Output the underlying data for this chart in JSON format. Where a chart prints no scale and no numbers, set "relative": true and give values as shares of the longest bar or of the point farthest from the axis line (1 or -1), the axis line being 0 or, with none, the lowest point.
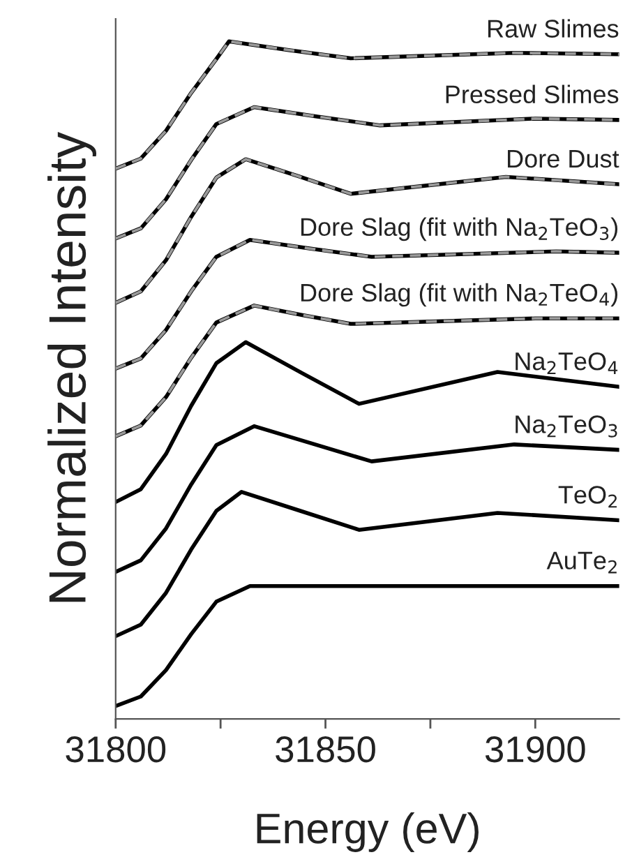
{
  "chart_data": {
    "type": "line",
    "relative": true,
    "xlabel": "Energy (eV)",
    "ylabel": "Normalized Intensity",
    "xlim": [
      31800,
      31920
    ],
    "xticks": [
      31800,
      31850,
      31900,
      {
        "value": 31825,
        "label": null
      },
      {
        "value": 31875,
        "label": null
      }
    ],
    "tick_labels": "x",
    "grid": false,
    "legend": false,
    "line_style": "solid",
    "marker": "none",
    "series": [
      {
        "name": "Raw Slimes",
        "color": "#000000",
        "x": [
          31800,
          31806,
          31812,
          31818,
          31824,
          31827,
          31841.5,
          31856,
          31895,
          31920
        ],
        "values": [
          0.812,
          0.827,
          0.868,
          0.924,
          0.974,
          1.0,
          0.987,
          0.975,
          0.983,
          0.981
        ]
      },
      {
        "name": "Pressed Slimes",
        "color": "#000000",
        "x": [
          31800,
          31806,
          31812,
          31818,
          31824,
          31833,
          31848,
          31863,
          31900,
          31920
        ],
        "values": [
          0.709,
          0.724,
          0.767,
          0.825,
          0.878,
          0.903,
          0.889,
          0.876,
          0.886,
          0.884
        ]
      },
      {
        "name": "Dore Dust",
        "color": "#000000",
        "x": [
          31800,
          31806,
          31812,
          31818,
          31824,
          31831,
          31843.5,
          31856,
          31893,
          31920
        ],
        "values": [
          0.614,
          0.631,
          0.677,
          0.741,
          0.799,
          0.826,
          0.801,
          0.775,
          0.8,
          0.789
        ]
      },
      {
        "name": "Dore Slag (fit with Na$_{2}$TeO$_{3}$)",
        "color": "#000000",
        "x": [
          31800,
          31806,
          31812,
          31818,
          31824,
          31832,
          31846.5,
          31861,
          31905,
          31920
        ],
        "values": [
          0.517,
          0.532,
          0.574,
          0.631,
          0.682,
          0.707,
          0.694,
          0.682,
          0.69,
          0.688
        ]
      },
      {
        "name": "Dore Slag (fit with Na$_{2}$TeO$_{4}$)",
        "color": "#000000",
        "x": [
          31800,
          31806,
          31812,
          31818,
          31824,
          31833,
          31844.5,
          31856,
          31900,
          31920
        ],
        "values": [
          0.417,
          0.433,
          0.475,
          0.533,
          0.585,
          0.61,
          0.596,
          0.583,
          0.591,
          0.591
        ]
      },
      {
        "name": "Na$_{2}$TeO$_{4}$",
        "color": "#000000",
        "x": [
          31800,
          31806,
          31812,
          31818,
          31824,
          31831,
          31844.5,
          31858,
          31891,
          31920
        ],
        "values": [
          0.32,
          0.339,
          0.391,
          0.462,
          0.525,
          0.556,
          0.51,
          0.465,
          0.512,
          0.49
        ]
      },
      {
        "name": "Na$_{2}$TeO$_{3}$",
        "color": "#000000",
        "x": [
          31800,
          31806,
          31812,
          31818,
          31824,
          31833,
          31847,
          31861,
          31895,
          31920
        ],
        "values": [
          0.217,
          0.234,
          0.281,
          0.346,
          0.404,
          0.432,
          0.406,
          0.38,
          0.405,
          0.397
        ]
      },
      {
        "name": "TeO$_{2}$",
        "color": "#000000",
        "x": [
          31800,
          31806,
          31812,
          31818,
          31824,
          31830,
          31844,
          31858,
          31891,
          31920
        ],
        "values": [
          0.122,
          0.139,
          0.186,
          0.25,
          0.307,
          0.335,
          0.307,
          0.279,
          0.304,
          0.293
        ]
      },
      {
        "name": "AuTe$_{2}$",
        "color": "#000000",
        "x": [
          31800,
          31806,
          31812,
          31818,
          31824,
          31832,
          31920
        ],
        "values": [
          0.019,
          0.033,
          0.072,
          0.125,
          0.173,
          0.196,
          0.196
        ]
      },
      {
        "color": "#9a9a9a",
        "line_style": "dashed",
        "x": [
          31800,
          31806,
          31812,
          31818,
          31824,
          31827,
          31841.5,
          31856,
          31895,
          31920
        ],
        "values": [
          0.812,
          0.827,
          0.868,
          0.924,
          0.974,
          1.0,
          0.987,
          0.975,
          0.983,
          0.981
        ]
      },
      {
        "color": "#9a9a9a",
        "line_style": "dashed",
        "x": [
          31800,
          31806,
          31812,
          31818,
          31824,
          31833,
          31848,
          31863,
          31900,
          31920
        ],
        "values": [
          0.709,
          0.724,
          0.767,
          0.825,
          0.878,
          0.903,
          0.889,
          0.876,
          0.886,
          0.884
        ]
      },
      {
        "color": "#9a9a9a",
        "line_style": "dashed",
        "x": [
          31800,
          31806,
          31812,
          31818,
          31824,
          31831,
          31843.5,
          31856,
          31893,
          31920
        ],
        "values": [
          0.614,
          0.631,
          0.677,
          0.741,
          0.799,
          0.826,
          0.801,
          0.775,
          0.8,
          0.789
        ]
      },
      {
        "color": "#9a9a9a",
        "line_style": "dashed",
        "x": [
          31800,
          31806,
          31812,
          31818,
          31824,
          31832,
          31846.5,
          31861,
          31905,
          31920
        ],
        "values": [
          0.517,
          0.532,
          0.574,
          0.631,
          0.682,
          0.707,
          0.694,
          0.682,
          0.69,
          0.688
        ]
      },
      {
        "color": "#9a9a9a",
        "line_style": "dashed",
        "x": [
          31800,
          31806,
          31812,
          31818,
          31824,
          31833,
          31844.5,
          31856,
          31900,
          31920
        ],
        "values": [
          0.417,
          0.433,
          0.475,
          0.533,
          0.585,
          0.61,
          0.596,
          0.583,
          0.591,
          0.591
        ]
      }
    ]
  }
}
